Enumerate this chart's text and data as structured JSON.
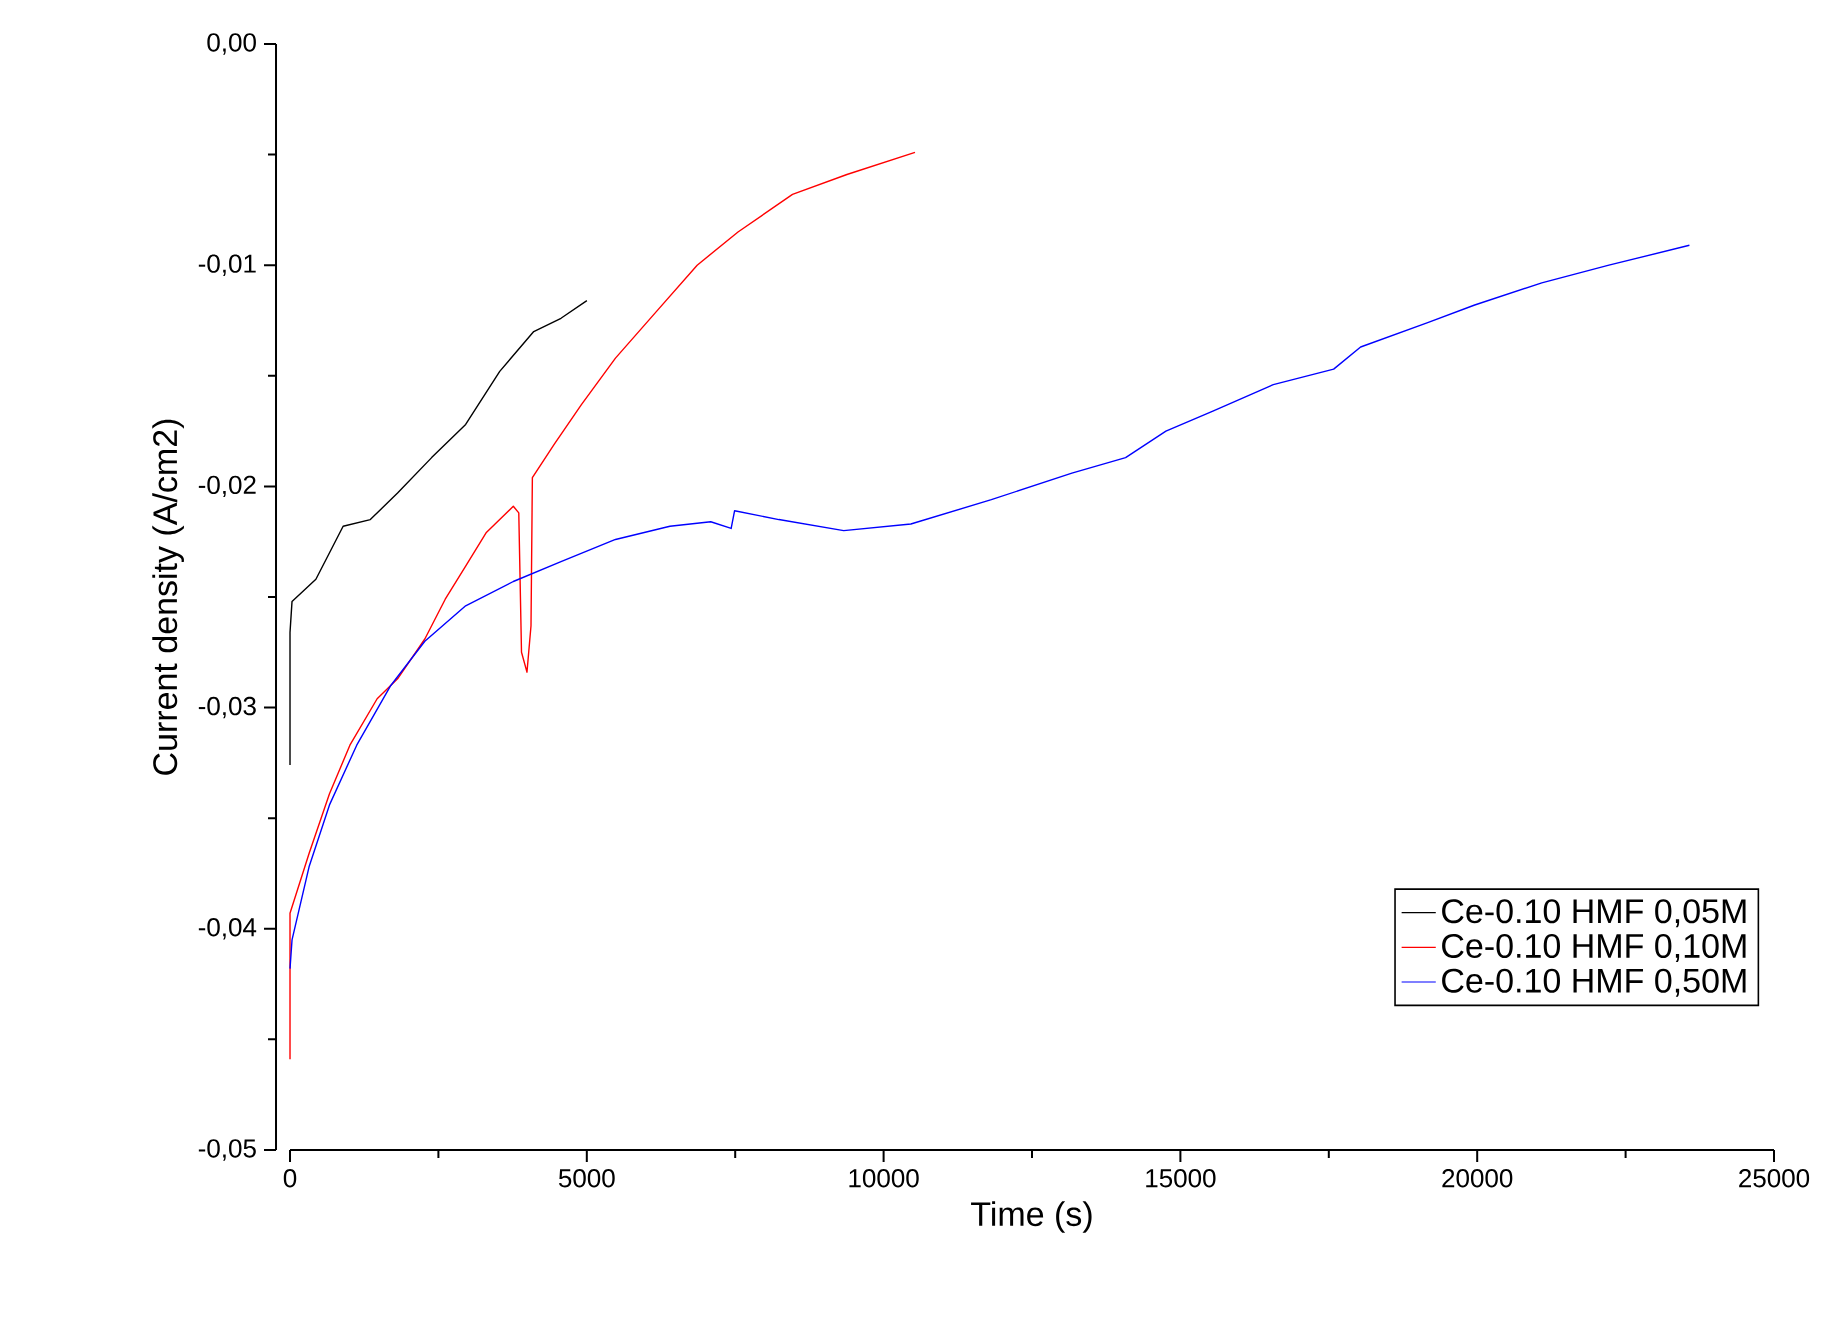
{
  "chart_data": {
    "type": "line",
    "xlabel": "Time (s)",
    "ylabel": "Current density (A/cm2)",
    "xlim": [
      0,
      25000
    ],
    "xticks": [
      0,
      5000,
      10000,
      15000,
      20000,
      25000
    ],
    "ylim": [
      -0.05,
      0
    ],
    "yticks": [
      {
        "value": -0.05,
        "label": "-0,05"
      },
      {
        "value": -0.04,
        "label": "-0,04"
      },
      {
        "value": -0.03,
        "label": "-0,03"
      },
      {
        "value": -0.02,
        "label": "-0,02"
      },
      {
        "value": -0.01,
        "label": "-0,01"
      },
      {
        "value": 0,
        "label": "0,00"
      }
    ],
    "grid": false,
    "legend": "bottom right",
    "marker": "none",
    "line_style": "solid",
    "series": [
      {
        "name": "Ce-0.10 HMF 0,05M",
        "color": "#000000",
        "x": [
          0,
          0,
          34,
          436,
          895,
          1353,
          1812,
          2386,
          2959,
          3533,
          4106,
          4565,
          5001
        ],
        "values": [
          -0.0326,
          -0.0266,
          -0.0252,
          -0.0242,
          -0.0218,
          -0.0215,
          -0.0203,
          -0.0187,
          -0.0172,
          -0.0148,
          -0.013,
          -0.0124,
          -0.0116
        ]
      },
      {
        "name": "Ce-0.10 HMF 0,10M",
        "color": "#ff0000",
        "x": [
          0,
          0,
          321,
          665,
          1009,
          1468,
          1812,
          2271,
          2615,
          2959,
          3303,
          3762,
          3854,
          3900,
          3992,
          4060,
          4083,
          4450,
          4909,
          5483,
          6171,
          6859,
          7547,
          8465,
          9382,
          10529
        ],
        "values": [
          -0.0459,
          -0.0393,
          -0.0366,
          -0.0339,
          -0.0317,
          -0.0296,
          -0.0287,
          -0.0269,
          -0.0251,
          -0.0236,
          -0.0221,
          -0.0209,
          -0.0212,
          -0.0275,
          -0.0284,
          -0.0263,
          -0.0196,
          -0.0181,
          -0.0163,
          -0.0142,
          -0.0121,
          -0.01,
          -0.0085,
          -0.0068,
          -0.0059,
          -0.0049
        ]
      },
      {
        "name": "Ce-0.10 HMF 0,50M",
        "color": "#0000ff",
        "x": [
          0,
          34,
          321,
          665,
          1124,
          1698,
          2271,
          2959,
          3762,
          4565,
          5483,
          6400,
          7088,
          7432,
          7490,
          8235,
          9328,
          10459,
          11815,
          13172,
          14077,
          14756,
          15547,
          16565,
          17582,
          18036,
          19166,
          19958,
          21088,
          22219,
          23575
        ],
        "values": [
          -0.0418,
          -0.0405,
          -0.0372,
          -0.0344,
          -0.0317,
          -0.029,
          -0.027,
          -0.0254,
          -0.0243,
          -0.0234,
          -0.0224,
          -0.0218,
          -0.0216,
          -0.0219,
          -0.0211,
          -0.0215,
          -0.022,
          -0.0217,
          -0.0206,
          -0.0194,
          -0.0187,
          -0.0175,
          -0.0166,
          -0.0154,
          -0.0147,
          -0.0137,
          -0.0126,
          -0.0118,
          -0.0108,
          -0.01,
          -0.0091
        ]
      }
    ]
  }
}
